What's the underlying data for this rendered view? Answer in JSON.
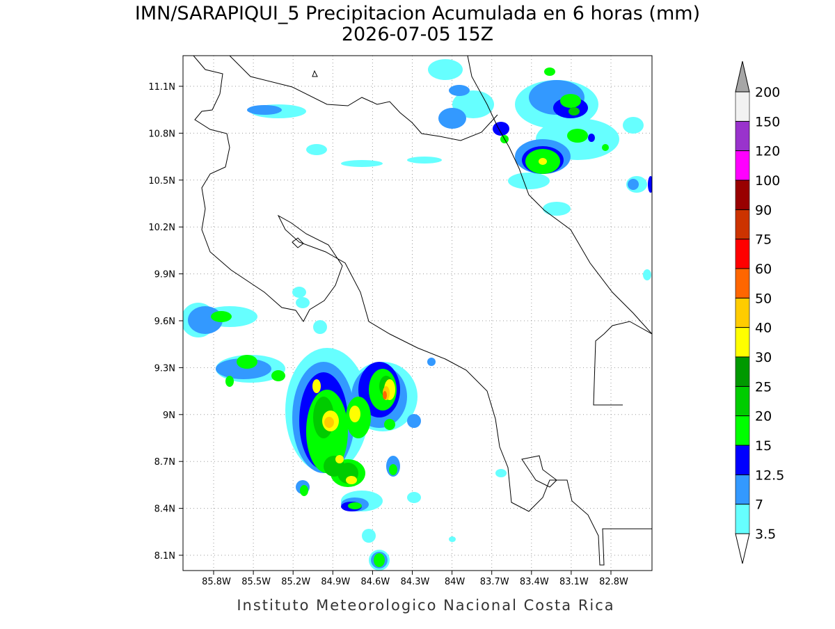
{
  "title": "IMN/SARAPIQUI_5 Precipitacion Acumulada en 6 horas (mm)",
  "subtitle": "2026-07-05 15Z",
  "footer": "Instituto Meteorologico Nacional Costa Rica",
  "map": {
    "lon_labels": [
      "85.8W",
      "85.5W",
      "85.2W",
      "84.9W",
      "84.6W",
      "84.3W",
      "84W",
      "83.7W",
      "83.4W",
      "83.1W",
      "82.8W"
    ],
    "lat_labels": [
      "11.1N",
      "10.8N",
      "10.5N",
      "10.2N",
      "9.9N",
      "9.6N",
      "9.3N",
      "9N",
      "8.7N",
      "8.4N",
      "8.1N"
    ]
  },
  "legend": {
    "levels": [
      3.5,
      7,
      12.5,
      15,
      20,
      25,
      30,
      40,
      50,
      60,
      75,
      90,
      100,
      120,
      150,
      200
    ],
    "colors": [
      "#66ffff",
      "#3399ff",
      "#0000ff",
      "#00ff00",
      "#00cc00",
      "#009900",
      "#ffff00",
      "#ffcc00",
      "#ff6600",
      "#ff0000",
      "#cc3300",
      "#990000",
      "#ff00ff",
      "#9933cc",
      "#f2f2f2"
    ],
    "below_color": "#ffffff",
    "above_color": "#a6a6a6"
  }
}
